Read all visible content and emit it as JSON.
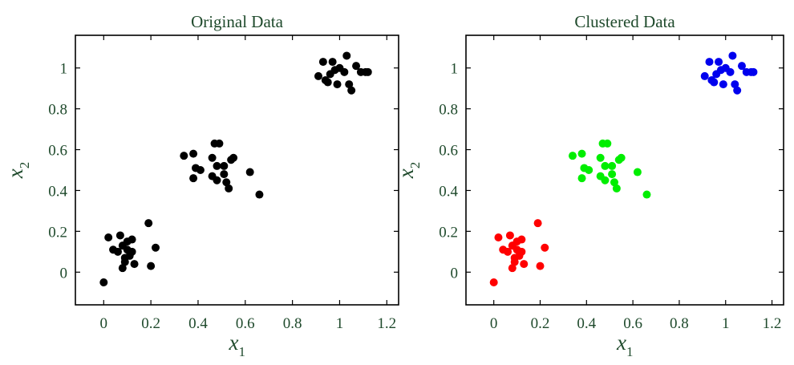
{
  "chart_data": [
    {
      "type": "scatter",
      "title": "Original Data",
      "xlabel": "x",
      "xlabel_sub": "1",
      "ylabel": "x",
      "ylabel_sub": "2",
      "xlim": [
        -0.12,
        1.25
      ],
      "ylim": [
        -0.16,
        1.16
      ],
      "xticks": [
        0,
        0.2,
        0.4,
        0.6,
        0.8,
        1,
        1.2
      ],
      "xtick_labels": [
        "0",
        "0.2",
        "0.4",
        "0.6",
        "0.8",
        "1",
        "1.2"
      ],
      "yticks": [
        0,
        0.2,
        0.4,
        0.6,
        0.8,
        1
      ],
      "ytick_labels": [
        "0",
        "0.2",
        "0.4",
        "0.6",
        "0.8",
        "1"
      ],
      "grid": false,
      "series": [
        {
          "color": "#000000",
          "points": [
            [
              0.0,
              -0.05
            ],
            [
              0.02,
              0.17
            ],
            [
              0.04,
              0.11
            ],
            [
              0.06,
              0.1
            ],
            [
              0.07,
              0.18
            ],
            [
              0.08,
              0.13
            ],
            [
              0.08,
              0.02
            ],
            [
              0.09,
              0.05
            ],
            [
              0.1,
              0.15
            ],
            [
              0.1,
              0.11
            ],
            [
              0.11,
              0.08
            ],
            [
              0.12,
              0.1
            ],
            [
              0.12,
              0.16
            ],
            [
              0.13,
              0.04
            ],
            [
              0.19,
              0.24
            ],
            [
              0.2,
              0.03
            ],
            [
              0.22,
              0.12
            ],
            [
              0.09,
              0.07
            ],
            [
              0.34,
              0.57
            ],
            [
              0.38,
              0.58
            ],
            [
              0.38,
              0.46
            ],
            [
              0.39,
              0.51
            ],
            [
              0.41,
              0.5
            ],
            [
              0.46,
              0.56
            ],
            [
              0.46,
              0.47
            ],
            [
              0.47,
              0.63
            ],
            [
              0.48,
              0.52
            ],
            [
              0.48,
              0.45
            ],
            [
              0.49,
              0.63
            ],
            [
              0.51,
              0.52
            ],
            [
              0.51,
              0.48
            ],
            [
              0.52,
              0.44
            ],
            [
              0.53,
              0.41
            ],
            [
              0.54,
              0.55
            ],
            [
              0.55,
              0.56
            ],
            [
              0.62,
              0.49
            ],
            [
              0.66,
              0.38
            ],
            [
              0.91,
              0.96
            ],
            [
              0.93,
              1.03
            ],
            [
              0.94,
              0.94
            ],
            [
              0.95,
              0.93
            ],
            [
              0.97,
              1.03
            ],
            [
              0.98,
              0.99
            ],
            [
              0.99,
              0.92
            ],
            [
              1.0,
              1.0
            ],
            [
              1.02,
              0.98
            ],
            [
              1.03,
              1.06
            ],
            [
              1.04,
              0.92
            ],
            [
              1.05,
              0.89
            ],
            [
              1.07,
              1.01
            ],
            [
              1.09,
              0.98
            ],
            [
              1.11,
              0.98
            ],
            [
              1.12,
              0.98
            ],
            [
              0.96,
              0.97
            ]
          ]
        }
      ]
    },
    {
      "type": "scatter",
      "title": "Clustered Data",
      "xlabel": "x",
      "xlabel_sub": "1",
      "ylabel": "x",
      "ylabel_sub": "2",
      "xlim": [
        -0.12,
        1.25
      ],
      "ylim": [
        -0.16,
        1.16
      ],
      "xticks": [
        0,
        0.2,
        0.4,
        0.6,
        0.8,
        1,
        1.2
      ],
      "xtick_labels": [
        "0",
        "0.2",
        "0.4",
        "0.6",
        "0.8",
        "1",
        "1.2"
      ],
      "yticks": [
        0,
        0.2,
        0.4,
        0.6,
        0.8,
        1
      ],
      "ytick_labels": [
        "0",
        "0.2",
        "0.4",
        "0.6",
        "0.8",
        "1"
      ],
      "grid": false,
      "series": [
        {
          "color": "#ff0000",
          "points": [
            [
              0.0,
              -0.05
            ],
            [
              0.02,
              0.17
            ],
            [
              0.04,
              0.11
            ],
            [
              0.06,
              0.1
            ],
            [
              0.07,
              0.18
            ],
            [
              0.08,
              0.13
            ],
            [
              0.08,
              0.02
            ],
            [
              0.09,
              0.05
            ],
            [
              0.1,
              0.15
            ],
            [
              0.1,
              0.11
            ],
            [
              0.11,
              0.08
            ],
            [
              0.12,
              0.1
            ],
            [
              0.12,
              0.16
            ],
            [
              0.13,
              0.04
            ],
            [
              0.19,
              0.24
            ],
            [
              0.2,
              0.03
            ],
            [
              0.22,
              0.12
            ],
            [
              0.09,
              0.07
            ]
          ]
        },
        {
          "color": "#00ee00",
          "points": [
            [
              0.34,
              0.57
            ],
            [
              0.38,
              0.58
            ],
            [
              0.38,
              0.46
            ],
            [
              0.39,
              0.51
            ],
            [
              0.41,
              0.5
            ],
            [
              0.46,
              0.56
            ],
            [
              0.46,
              0.47
            ],
            [
              0.47,
              0.63
            ],
            [
              0.48,
              0.52
            ],
            [
              0.48,
              0.45
            ],
            [
              0.49,
              0.63
            ],
            [
              0.51,
              0.52
            ],
            [
              0.51,
              0.48
            ],
            [
              0.52,
              0.44
            ],
            [
              0.53,
              0.41
            ],
            [
              0.54,
              0.55
            ],
            [
              0.55,
              0.56
            ],
            [
              0.62,
              0.49
            ],
            [
              0.66,
              0.38
            ]
          ]
        },
        {
          "color": "#0000ee",
          "points": [
            [
              0.91,
              0.96
            ],
            [
              0.93,
              1.03
            ],
            [
              0.94,
              0.94
            ],
            [
              0.95,
              0.93
            ],
            [
              0.97,
              1.03
            ],
            [
              0.98,
              0.99
            ],
            [
              0.99,
              0.92
            ],
            [
              1.0,
              1.0
            ],
            [
              1.02,
              0.98
            ],
            [
              1.03,
              1.06
            ],
            [
              1.04,
              0.92
            ],
            [
              1.05,
              0.89
            ],
            [
              1.07,
              1.01
            ],
            [
              1.09,
              0.98
            ],
            [
              1.11,
              0.98
            ],
            [
              1.12,
              0.98
            ],
            [
              0.96,
              0.97
            ]
          ]
        }
      ]
    }
  ]
}
